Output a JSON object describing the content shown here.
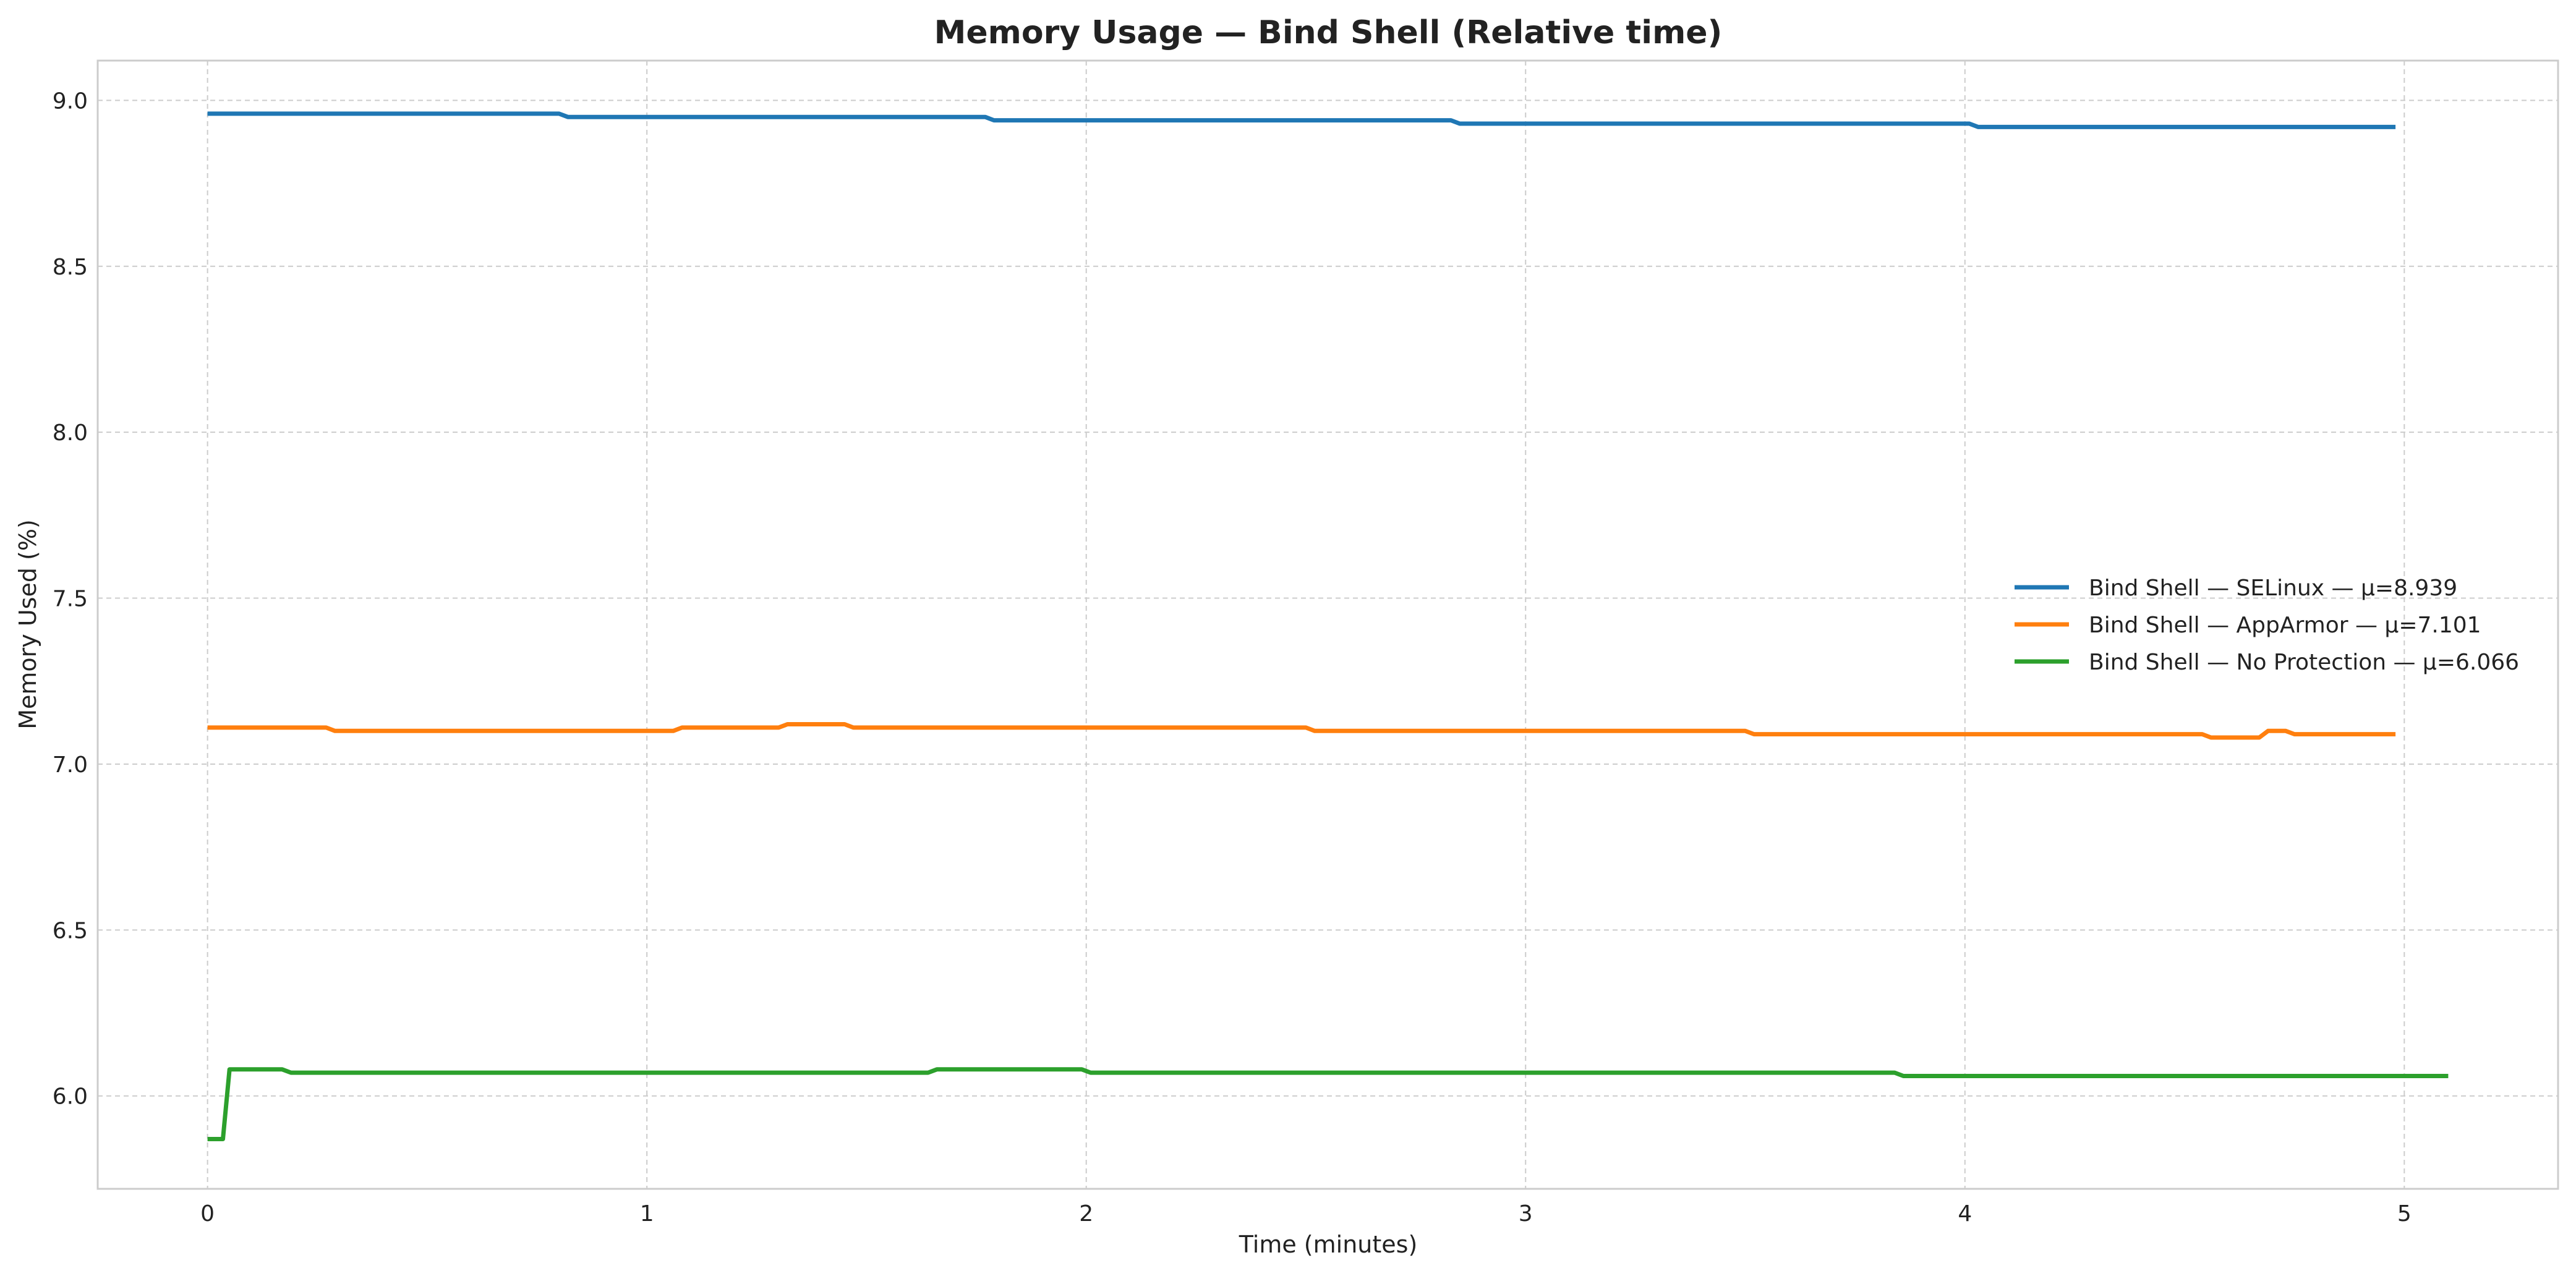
{
  "chart_data": {
    "type": "line",
    "title": "Memory Usage — Bind Shell (Relative time)",
    "xlabel": "Time (minutes)",
    "ylabel": "Memory Used (%)",
    "xlim": [
      -0.25,
      5.35
    ],
    "ylim": [
      5.72,
      9.12
    ],
    "xticks": [
      0,
      1,
      2,
      3,
      4,
      5
    ],
    "yticks": [
      6.0,
      6.5,
      7.0,
      7.5,
      8.0,
      8.5,
      9.0
    ],
    "xtick_labels": [
      "0",
      "1",
      "2",
      "3",
      "4",
      "5"
    ],
    "ytick_labels": [
      "6.0",
      "6.5",
      "7.0",
      "7.5",
      "8.0",
      "8.5",
      "9.0"
    ],
    "grid": true,
    "legend_position": "center-right",
    "series": [
      {
        "name": "Bind Shell — SELinux — μ=8.939",
        "color": "#1f77b4",
        "x": [
          0,
          0.8,
          0.82,
          1.77,
          1.79,
          2.83,
          2.85,
          4.01,
          4.03,
          4.98
        ],
        "y": [
          8.96,
          8.96,
          8.95,
          8.95,
          8.94,
          8.94,
          8.93,
          8.93,
          8.92,
          8.92
        ]
      },
      {
        "name": "Bind Shell — AppArmor — μ=7.101",
        "color": "#ff7f0e",
        "x": [
          0,
          0.27,
          0.29,
          1.06,
          1.08,
          1.3,
          1.32,
          1.45,
          1.47,
          2.5,
          2.52,
          3.5,
          3.52,
          4.54,
          4.56,
          4.67,
          4.69,
          4.73,
          4.75,
          4.98
        ],
        "y": [
          7.11,
          7.11,
          7.1,
          7.1,
          7.11,
          7.11,
          7.12,
          7.12,
          7.11,
          7.11,
          7.1,
          7.1,
          7.09,
          7.09,
          7.08,
          7.08,
          7.1,
          7.1,
          7.09,
          7.09
        ]
      },
      {
        "name": "Bind Shell — No Protection — μ=6.066",
        "color": "#2ca02c",
        "x": [
          0,
          0.035,
          0.05,
          0.17,
          0.19,
          1.64,
          1.66,
          1.99,
          2.01,
          3.84,
          3.86,
          5.1
        ],
        "y": [
          5.87,
          5.87,
          6.08,
          6.08,
          6.07,
          6.07,
          6.08,
          6.08,
          6.07,
          6.07,
          6.06,
          6.06
        ]
      }
    ]
  }
}
